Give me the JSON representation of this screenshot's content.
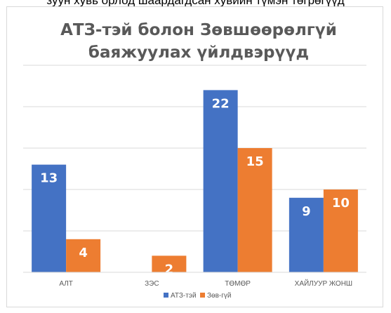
{
  "top_caption": "зуун хувь орлод шаардагдсан хувийн түмэн төгрөгүүд",
  "chart_data": {
    "type": "bar",
    "title_lines": [
      "АТЗ-тэй болон Зөвшөөрөлгүй",
      "баяжуулах үйлдвэрүүд"
    ],
    "categories": [
      "АЛТ",
      "ЗЭС",
      "ТӨМӨР",
      "ХАЙЛУУР ЖОНШ"
    ],
    "series": [
      {
        "name": "АТЗ-тэй",
        "values": [
          13,
          null,
          22,
          9
        ],
        "color": "#4472c4"
      },
      {
        "name": "Зөв-гүй",
        "values": [
          4,
          2,
          15,
          10
        ],
        "color": "#ed7d31"
      }
    ],
    "ylim": [
      0,
      25
    ],
    "grid": true,
    "legend_position": "bottom",
    "xlabel": "",
    "ylabel": ""
  }
}
